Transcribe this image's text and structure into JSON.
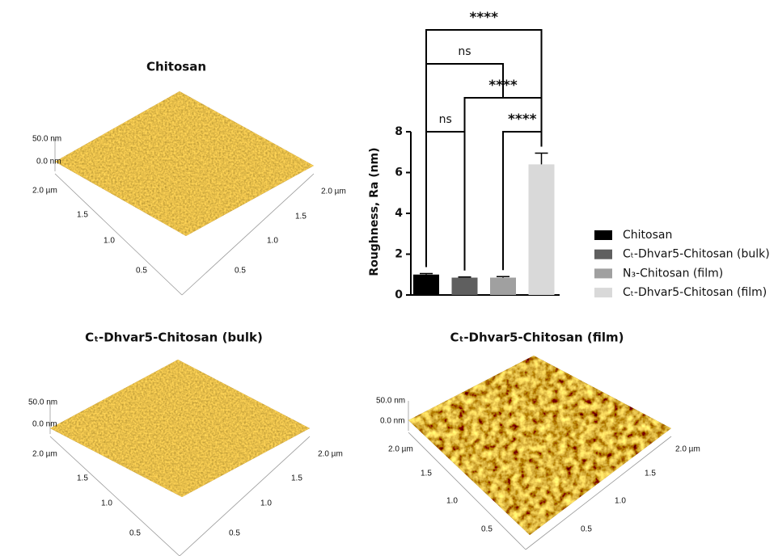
{
  "panels": [
    {
      "title": "Chitosan",
      "z_labels": [
        "50.0 nm",
        "0.0 nm"
      ],
      "left_labels": [
        "2.0 µm",
        "1.5",
        "1.0",
        "0.5"
      ],
      "right_labels": [
        "2.0 µm",
        "1.5",
        "1.0",
        "0.5"
      ]
    },
    {
      "title": "Cₜ-Dhvar5-Chitosan (bulk)",
      "z_labels": [
        "50.0 nm",
        "0.0 nm"
      ],
      "left_labels": [
        "2.0 µm",
        "1.5",
        "1.0",
        "0.5"
      ],
      "right_labels": [
        "2.0 µm",
        "1.5",
        "1.0",
        "0.5"
      ]
    },
    {
      "title": "Cₜ-Dhvar5-Chitosan (film)",
      "z_labels": [
        "50.0 nm",
        "0.0 nm"
      ],
      "left_labels": [
        "2.0 µm",
        "1.5",
        "1.0",
        "0.5"
      ],
      "right_labels": [
        "2.0 µm",
        "1.5",
        "1.0",
        "0.5"
      ]
    }
  ],
  "chart_data": {
    "type": "bar",
    "y_label": "Roughness, Ra (nm)",
    "categories": [
      null
    ],
    "series": [
      {
        "name": "Chitosan",
        "color": "#000000",
        "values": [
          1.0
        ],
        "errors": [
          0.05
        ]
      },
      {
        "name": "Cₜ-Dhvar5-Chitosan (bulk)",
        "color": "#5f5f5f",
        "values": [
          0.85
        ],
        "errors": [
          0.03
        ]
      },
      {
        "name": "N₃-Chitosan (film)",
        "color": "#a0a0a0",
        "values": [
          0.85
        ],
        "errors": [
          0.05
        ]
      },
      {
        "name": "Cₜ-Dhvar5-Chitosan (film)",
        "color": "#d9d9d9",
        "values": [
          6.4
        ],
        "errors": [
          0.55
        ]
      }
    ],
    "ylim": [
      0,
      8
    ],
    "yticks": [
      0,
      2,
      4,
      6,
      8
    ],
    "comparisons": [
      {
        "groups": [
          0,
          1
        ],
        "label": "ns"
      },
      {
        "groups": [
          2,
          3
        ],
        "label": "****"
      },
      {
        "groups": [
          1,
          3
        ],
        "label": "****"
      },
      {
        "groups": [
          0,
          2
        ],
        "label": "ns"
      },
      {
        "groups": [
          0,
          3
        ],
        "label": "****"
      }
    ]
  }
}
